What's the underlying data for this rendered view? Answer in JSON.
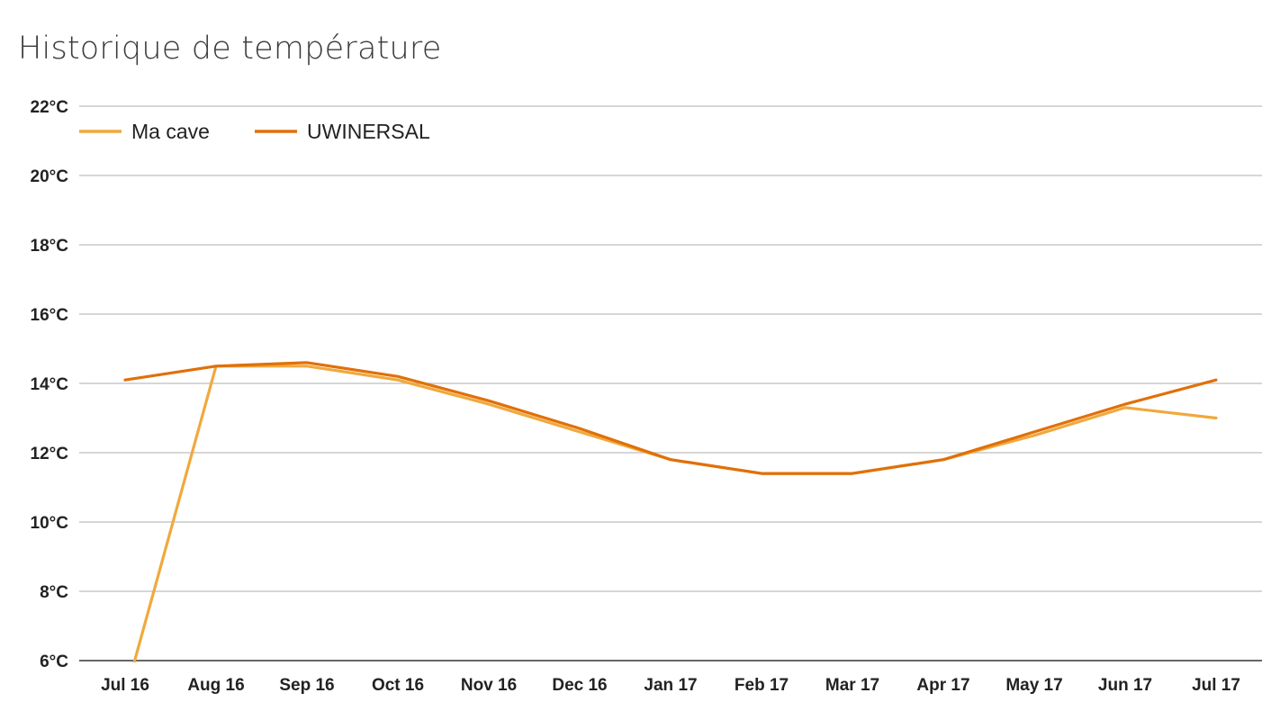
{
  "chart_data": {
    "type": "line",
    "title": "Historique de température",
    "xlabel": "",
    "ylabel": "",
    "categories": [
      "Jul 16",
      "Aug 16",
      "Sep 16",
      "Oct 16",
      "Nov 16",
      "Dec 16",
      "Jan 17",
      "Feb 17",
      "Mar 17",
      "Apr 17",
      "May 17",
      "Jun 17",
      "Jul 17"
    ],
    "y_ticks": [
      "6°C",
      "8°C",
      "10°C",
      "12°C",
      "14°C",
      "16°C",
      "18°C",
      "20°C",
      "22°C"
    ],
    "ylim": [
      6,
      22
    ],
    "y_unit": "°C",
    "grid": true,
    "legend_position": "top-left",
    "series": [
      {
        "name": "Ma cave",
        "color": "#f0a93e",
        "values": [
          5.0,
          14.5,
          14.5,
          14.1,
          13.4,
          12.6,
          11.8,
          11.4,
          11.4,
          11.8,
          12.5,
          13.3,
          13.0
        ],
        "note_first_point": "line enters from below the 6°C axis minimum"
      },
      {
        "name": "UWINERSAL",
        "color": "#e0700a",
        "values": [
          14.1,
          14.5,
          14.6,
          14.2,
          13.5,
          12.7,
          11.8,
          11.4,
          11.4,
          11.8,
          12.6,
          13.4,
          14.1
        ]
      }
    ]
  }
}
